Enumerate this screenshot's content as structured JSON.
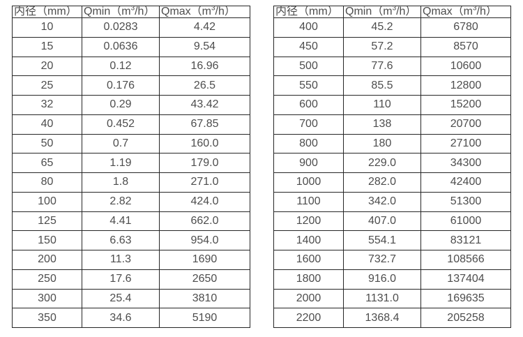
{
  "page": {
    "background_color": "#ffffff",
    "text_color": "#4d4d4d",
    "border_color": "#262626"
  },
  "tables": [
    {
      "name": "flow-rate-table-small-diameters",
      "headers": [
        {
          "pre": "内径（mm）",
          "sup": "",
          "post": ""
        },
        {
          "pre": "Qmin（m",
          "sup": "3",
          "post": "/h）"
        },
        {
          "pre": "Qmax（m",
          "sup": "3",
          "post": "/h）"
        }
      ],
      "rows": [
        [
          "10",
          "0.0283",
          "4.42"
        ],
        [
          "15",
          "0.0636",
          "9.54"
        ],
        [
          "20",
          "0.12",
          "16.96"
        ],
        [
          "25",
          "0.176",
          "26.5"
        ],
        [
          "32",
          "0.29",
          "43.42"
        ],
        [
          "40",
          "0.452",
          "67.85"
        ],
        [
          "50",
          "0.7",
          "160.0"
        ],
        [
          "65",
          "1.19",
          "179.0"
        ],
        [
          "80",
          "1.8",
          "271.0"
        ],
        [
          "100",
          "2.82",
          "424.0"
        ],
        [
          "125",
          "4.41",
          "662.0"
        ],
        [
          "150",
          "6.63",
          "954.0"
        ],
        [
          "200",
          "11.3",
          "1690"
        ],
        [
          "250",
          "17.6",
          "2650"
        ],
        [
          "300",
          "25.4",
          "3810"
        ],
        [
          "350",
          "34.6",
          "5190"
        ]
      ]
    },
    {
      "name": "flow-rate-table-large-diameters",
      "headers": [
        {
          "pre": "内径（mm）",
          "sup": "",
          "post": ""
        },
        {
          "pre": "Qmin（m",
          "sup": "3",
          "post": "/h）"
        },
        {
          "pre": "Qmax（m",
          "sup": "3",
          "post": "/h）"
        }
      ],
      "rows": [
        [
          "400",
          "45.2",
          "6780"
        ],
        [
          "450",
          "57.2",
          "8570"
        ],
        [
          "500",
          "77.6",
          "10600"
        ],
        [
          "550",
          "85.5",
          "12800"
        ],
        [
          "600",
          "110",
          "15200"
        ],
        [
          "700",
          "138",
          "20700"
        ],
        [
          "800",
          "180",
          "27100"
        ],
        [
          "900",
          "229.0",
          "34300"
        ],
        [
          "1000",
          "282.0",
          "42400"
        ],
        [
          "1100",
          "342.0",
          "51300"
        ],
        [
          "1200",
          "407.0",
          "61000"
        ],
        [
          "1400",
          "554.1",
          "83121"
        ],
        [
          "1600",
          "732.7",
          "108566"
        ],
        [
          "1800",
          "916.0",
          "137404"
        ],
        [
          "2000",
          "1131.0",
          "169635"
        ],
        [
          "2200",
          "1368.4",
          "205258"
        ]
      ]
    }
  ]
}
